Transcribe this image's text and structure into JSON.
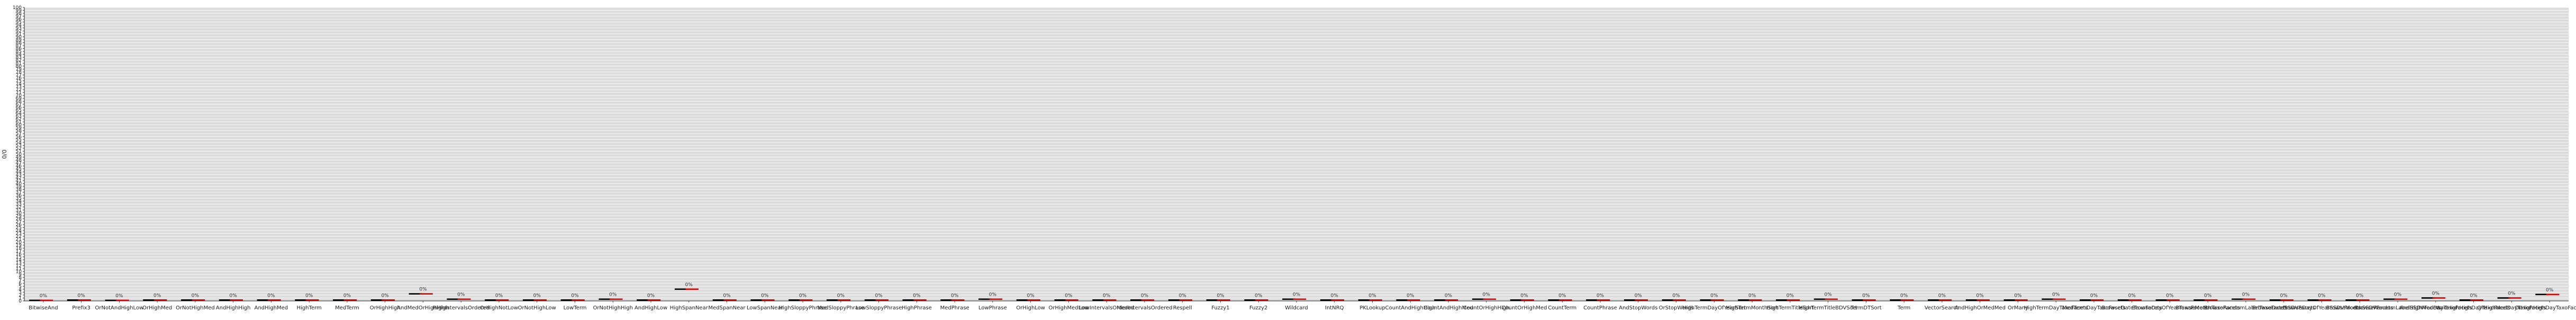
{
  "chart_data": {
    "type": "bar",
    "title": "",
    "xlabel": "",
    "ylabel": "0/0",
    "ylim": [
      0,
      100
    ],
    "grid": true,
    "legend": "none",
    "colors": {
      "background": "#dcdcdc",
      "grid": "#ffffff",
      "series_a": "#000000",
      "series_b": "#dd0000",
      "series_c": "#2e9a2e"
    },
    "categories": [
      "BitwiseAnd",
      "Prefix3",
      "OrNotAndHighLow",
      "OrHighMed",
      "OrNotHighMed",
      "AndHighHigh",
      "AndHighMed",
      "HighTerm",
      "MedTerm",
      "OrHighHigh",
      "AndMedOrHighHigh",
      "HighIntervalsOrdered",
      "OrHighNotLow",
      "OrNotHighLow",
      "LowTerm",
      "OrNotHighHigh",
      "AndHighLow",
      "HighSpanNear",
      "MedSpanNear",
      "LowSpanNear",
      "HighSloppyPhrase",
      "MedSloppyPhrase",
      "LowSloppyPhrase",
      "HighPhrase",
      "MedPhrase",
      "LowPhrase",
      "OrHighLow",
      "OrHighMedLow",
      "LowIntervalsOrdered",
      "MedIntervalsOrdered",
      "Respell",
      "Fuzzy1",
      "Fuzzy2",
      "Wildcard",
      "IntNRQ",
      "PKLookup",
      "CountAndHighHigh",
      "CountAndHighMed",
      "CountOrHighHigh",
      "CountOrHighMed",
      "CountTerm",
      "CountPhrase",
      "AndStopWords",
      "OrStopWords",
      "HighTermDayOfYearSort",
      "HighTermMonthSort",
      "HighTermTitleSort",
      "HighTermTitleBDVSort",
      "TermDTSort",
      "Term",
      "VectorSearch",
      "AndHighOrMedMed",
      "OrMany",
      "HighTermDayTaxoFacets",
      "MedTermDayTaxoFacets",
      "BrowseDateTaxoFacets",
      "BrowseDayOfYearTaxoFacets",
      "BrowseMonthTaxoFacets",
      "BrowseRandomLabelTaxoFacets",
      "BrowseDateSSDVFacets",
      "BrowseDayOfYearSSDVFacets",
      "BrowseMonthSSDVFacets",
      "BrowseRandomLabelSSDVFacets",
      "AndHighMedDayTaxoFacets",
      "AndHighHighDayTaxoFacets",
      "OrHighMedDayTaxoFacets",
      "OrHighHighDayTaxoFacets"
    ],
    "series": [
      {
        "values": [
          0.2,
          0.3,
          0.2,
          0.3,
          0.3,
          0.3,
          0.3,
          0.3,
          0.3,
          0.3,
          2.4,
          0.6,
          0.3,
          0.3,
          0.3,
          0.6,
          0.3,
          4.0,
          0.3,
          0.3,
          0.3,
          0.3,
          0.3,
          0.3,
          0.3,
          0.6,
          0.3,
          0.3,
          0.3,
          0.3,
          0.3,
          0.3,
          0.3,
          0.6,
          0.3,
          0.3,
          0.3,
          0.3,
          0.6,
          0.3,
          0.3,
          0.3,
          0.3,
          0.3,
          0.3,
          0.3,
          0.3,
          0.6,
          0.3,
          0.3,
          0.3,
          0.3,
          0.3,
          0.6,
          0.3,
          0.3,
          0.3,
          0.3,
          0.6,
          0.3,
          0.3,
          0.3,
          0.6,
          1.0,
          0.3,
          1.0,
          2.2
        ]
      },
      {
        "values": [
          0.2,
          0.3,
          0.2,
          0.3,
          0.3,
          0.3,
          0.3,
          0.3,
          0.3,
          0.3,
          2.4,
          0.6,
          0.3,
          0.3,
          0.3,
          0.6,
          0.3,
          4.0,
          0.3,
          0.3,
          0.3,
          0.3,
          0.3,
          0.3,
          0.3,
          0.6,
          0.3,
          0.3,
          0.3,
          0.3,
          0.3,
          0.3,
          0.3,
          0.6,
          0.3,
          0.3,
          0.3,
          0.3,
          0.6,
          0.3,
          0.3,
          0.3,
          0.3,
          0.3,
          0.3,
          0.3,
          0.3,
          0.6,
          0.3,
          0.3,
          0.3,
          0.3,
          0.3,
          0.6,
          0.3,
          0.3,
          0.3,
          0.3,
          0.6,
          0.3,
          0.3,
          0.3,
          0.6,
          1.0,
          0.3,
          1.0,
          2.2
        ]
      },
      {
        "values": [
          null,
          null,
          null,
          null,
          null,
          null,
          null,
          null,
          null,
          null,
          null,
          null,
          null,
          null,
          null,
          null,
          null,
          null,
          null,
          null,
          null,
          null,
          null,
          null,
          null,
          null,
          null,
          null,
          null,
          null,
          null,
          null,
          null,
          null,
          null,
          null,
          null,
          null,
          null,
          null,
          null,
          null,
          null,
          null,
          null,
          null,
          null,
          null,
          null,
          null,
          null,
          null,
          null,
          null,
          null,
          null,
          null,
          null,
          null,
          null,
          null,
          null,
          null,
          null,
          null,
          null,
          null
        ]
      }
    ],
    "label_text": "0%",
    "yticks": [
      "0",
      "1",
      "2",
      "3",
      "4",
      "5",
      "6",
      "7",
      "8",
      "9",
      "10",
      "11",
      "12",
      "13",
      "14",
      "15",
      "16",
      "17",
      "18",
      "19",
      "20",
      "21",
      "22",
      "23",
      "24",
      "25",
      "26",
      "27",
      "28",
      "29",
      "30",
      "31",
      "32",
      "33",
      "34",
      "35",
      "36",
      "37",
      "38",
      "39",
      "40",
      "41",
      "42",
      "43",
      "44",
      "45",
      "46",
      "47",
      "48",
      "49",
      "50",
      "51",
      "52",
      "53",
      "54",
      "55",
      "56",
      "57",
      "58",
      "59",
      "60",
      "61",
      "62",
      "63",
      "64",
      "65",
      "66",
      "67",
      "68",
      "69",
      "70",
      "71",
      "72",
      "73",
      "74",
      "75",
      "76",
      "77",
      "78",
      "79",
      "80",
      "81",
      "82",
      "83",
      "84",
      "85",
      "86",
      "87",
      "88",
      "89",
      "90",
      "91",
      "92",
      "93",
      "94",
      "95",
      "96",
      "97",
      "98",
      "99",
      "100"
    ]
  }
}
